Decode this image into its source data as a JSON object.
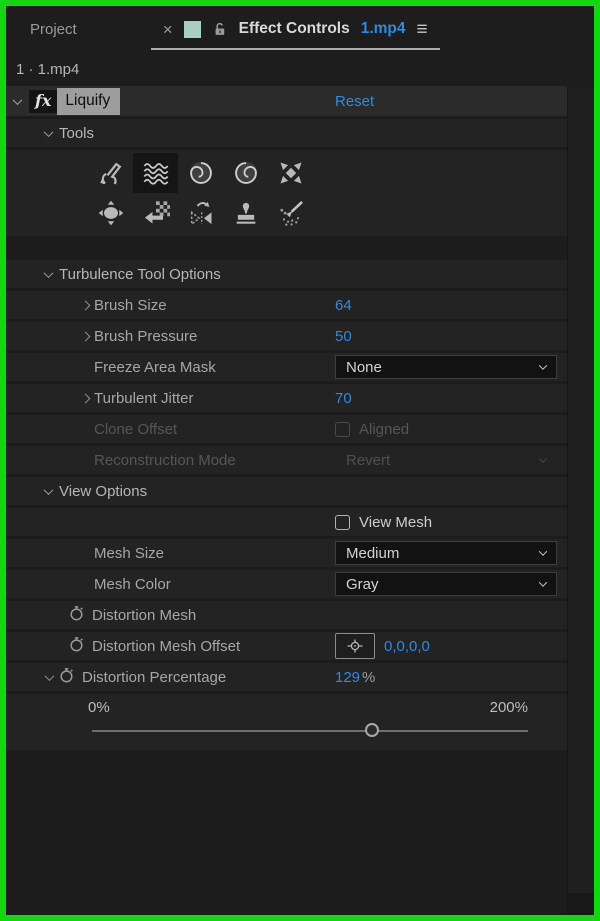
{
  "colors": {
    "accent_blue": "#3089e0",
    "frame_green": "#13d713",
    "tab_swatch_teal": "#a9cfc4"
  },
  "panel": {
    "tabs": {
      "inactive": "Project",
      "active_title": "Effect Controls",
      "active_file": "1.mp4",
      "close_icon": "×",
      "menu_icon": "≡"
    },
    "context": "1 · 1.mp4"
  },
  "effect": {
    "fx_badge": "fx",
    "name": "Liquify",
    "reset_label": "Reset"
  },
  "tools": {
    "header": "Tools",
    "items": [
      "warp",
      "turbulence",
      "twirl-clockwise",
      "twirl-counterclockwise",
      "pucker",
      "bloat",
      "shift-pixels",
      "reflection",
      "clone",
      "reconstruction"
    ],
    "selected": "turbulence"
  },
  "turbulence_options": {
    "header": "Turbulence Tool Options",
    "brush_size": {
      "label": "Brush Size",
      "value": "64"
    },
    "brush_pressure": {
      "label": "Brush Pressure",
      "value": "50"
    },
    "freeze_area_mask": {
      "label": "Freeze Area Mask",
      "value": "None"
    },
    "turbulent_jitter": {
      "label": "Turbulent Jitter",
      "value": "70"
    },
    "clone_offset": {
      "label": "Clone Offset",
      "checkbox_label": "Aligned",
      "checked": false,
      "disabled": true
    },
    "reconstruction_mode": {
      "label": "Reconstruction Mode",
      "value": "Revert",
      "disabled": true
    }
  },
  "view_options": {
    "header": "View Options",
    "view_mesh": {
      "label": "View Mesh",
      "checked": false
    },
    "mesh_size": {
      "label": "Mesh Size",
      "value": "Medium"
    },
    "mesh_color": {
      "label": "Mesh Color",
      "value": "Gray"
    },
    "distortion_mesh": {
      "label": "Distortion Mesh"
    },
    "distortion_mesh_offset": {
      "label": "Distortion Mesh Offset",
      "value": "0,0,0,0"
    },
    "distortion_percentage": {
      "label": "Distortion Percentage",
      "value": "129",
      "unit": "%",
      "slider": {
        "min_label": "0%",
        "max_label": "200%",
        "min": 0,
        "max": 200,
        "value": 129
      }
    }
  }
}
